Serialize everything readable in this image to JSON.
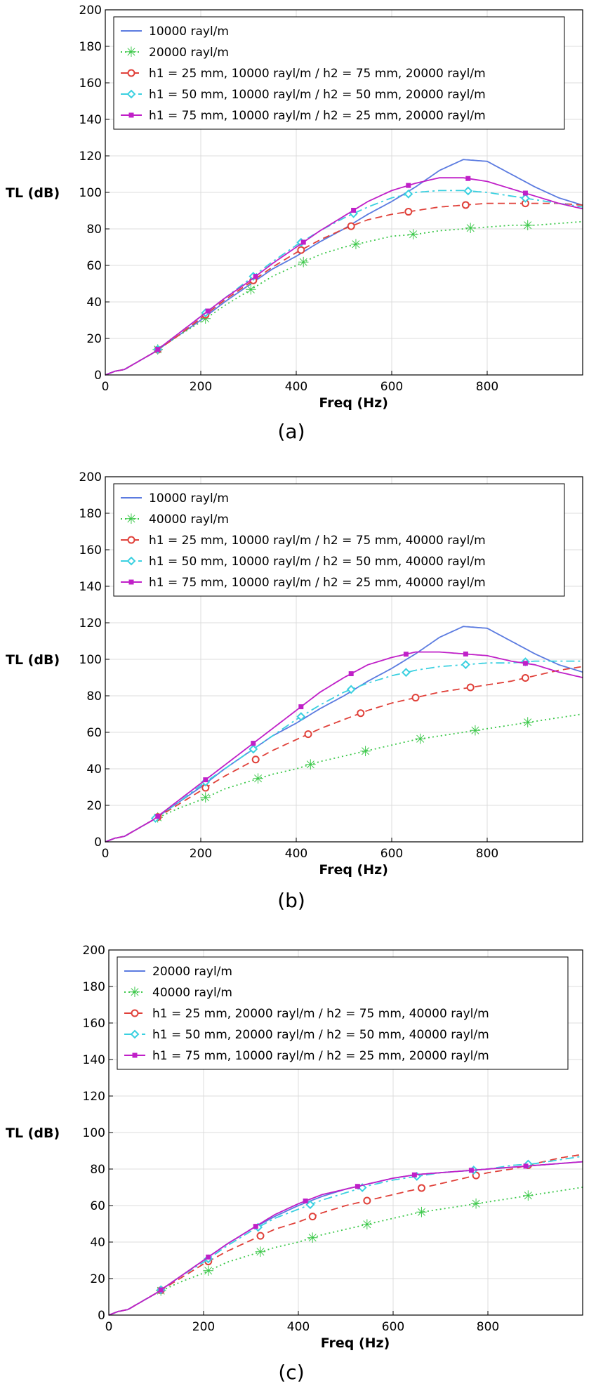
{
  "chart_data": [
    {
      "type": "line",
      "caption": "(a)",
      "xlabel": "Freq (Hz)",
      "ylabel": "TL (dB)",
      "xlim": [
        0,
        1000
      ],
      "ylim": [
        0,
        200
      ],
      "xticks": [
        0,
        200,
        400,
        600,
        800
      ],
      "yticks": [
        0,
        20,
        40,
        60,
        80,
        100,
        120,
        140,
        160,
        180,
        200
      ],
      "grid": true,
      "legend_position": "top-left",
      "series": [
        {
          "name": "10000 rayl/m",
          "color": "#5b7be0",
          "style": "solid",
          "marker": "none",
          "x": [
            0,
            20,
            40,
            60,
            80,
            100,
            150,
            200,
            250,
            300,
            350,
            400,
            450,
            500,
            550,
            600,
            650,
            700,
            750,
            800,
            850,
            900,
            950,
            1000
          ],
          "y": [
            0,
            2,
            3,
            6,
            9,
            12,
            21,
            30,
            40,
            49,
            58,
            65,
            73,
            80,
            88,
            95,
            103,
            112,
            118,
            117,
            110,
            103,
            97,
            93
          ]
        },
        {
          "name": "20000 rayl/m",
          "color": "#3cc84a",
          "style": "dotted",
          "marker": "star",
          "x": [
            0,
            20,
            40,
            60,
            80,
            100,
            150,
            200,
            250,
            300,
            350,
            400,
            450,
            500,
            550,
            600,
            650,
            700,
            750,
            800,
            850,
            900,
            950,
            1000
          ],
          "y": [
            0,
            2,
            3,
            6,
            9,
            12,
            21,
            29,
            38,
            46,
            54,
            60,
            66,
            70,
            73,
            76,
            77,
            79,
            80,
            81,
            82,
            82,
            83,
            84
          ],
          "marker_x": [
            110,
            210,
            305,
            415,
            525,
            645,
            765,
            885
          ]
        },
        {
          "name": "h1 = 25 mm, 10000 rayl/m / h2 = 75 mm, 20000 rayl/m",
          "color": "#e0413a",
          "style": "dashed",
          "marker": "circle",
          "x": [
            0,
            20,
            40,
            60,
            80,
            100,
            150,
            200,
            250,
            300,
            350,
            400,
            450,
            500,
            550,
            600,
            650,
            700,
            750,
            800,
            850,
            900,
            950,
            1000
          ],
          "y": [
            0,
            2,
            3,
            6,
            9,
            12,
            21,
            31,
            41,
            50,
            59,
            67,
            74,
            80,
            85,
            88,
            90,
            92,
            93,
            94,
            94,
            94,
            94,
            93
          ],
          "marker_x": [
            110,
            210,
            310,
            410,
            515,
            635,
            755,
            880
          ]
        },
        {
          "name": "h1 = 50 mm, 10000 rayl/m / h2 = 50 mm, 20000 rayl/m",
          "color": "#3ad0e0",
          "style": "dashdot",
          "marker": "diamond",
          "x": [
            0,
            20,
            40,
            60,
            80,
            100,
            150,
            200,
            250,
            300,
            350,
            400,
            450,
            500,
            550,
            600,
            650,
            700,
            750,
            800,
            850,
            900,
            950,
            1000
          ],
          "y": [
            0,
            2,
            3,
            6,
            9,
            12,
            22,
            32,
            42,
            52,
            62,
            71,
            79,
            86,
            92,
            97,
            100,
            101,
            101,
            100,
            98,
            96,
            94,
            92
          ],
          "marker_x": [
            110,
            210,
            310,
            410,
            520,
            635,
            760,
            880
          ]
        },
        {
          "name": "h1 = 75 mm, 10000 rayl/m / h2 = 25 mm, 20000 rayl/m",
          "color": "#c020c8",
          "style": "solid",
          "marker": "square",
          "x": [
            0,
            20,
            40,
            60,
            80,
            100,
            150,
            200,
            250,
            300,
            350,
            400,
            450,
            500,
            550,
            600,
            650,
            700,
            750,
            800,
            850,
            900,
            950,
            1000
          ],
          "y": [
            0,
            2,
            3,
            6,
            9,
            12,
            22,
            32,
            42,
            51,
            61,
            70,
            79,
            87,
            95,
            101,
            105,
            108,
            108,
            106,
            102,
            98,
            94,
            91
          ],
          "marker_x": [
            110,
            215,
            315,
            415,
            520,
            635,
            760,
            880
          ]
        }
      ]
    },
    {
      "type": "line",
      "caption": "(b)",
      "xlabel": "Freq (Hz)",
      "ylabel": "TL (dB)",
      "xlim": [
        0,
        1000
      ],
      "ylim": [
        0,
        200
      ],
      "xticks": [
        0,
        200,
        400,
        600,
        800
      ],
      "yticks": [
        0,
        20,
        40,
        60,
        80,
        100,
        120,
        140,
        160,
        180,
        200
      ],
      "grid": true,
      "legend_position": "top-left",
      "series": [
        {
          "name": "10000 rayl/m",
          "color": "#5b7be0",
          "style": "solid",
          "marker": "none",
          "x": [
            0,
            20,
            40,
            60,
            80,
            100,
            150,
            200,
            250,
            300,
            350,
            400,
            450,
            500,
            550,
            600,
            650,
            700,
            750,
            800,
            850,
            900,
            950,
            1000
          ],
          "y": [
            0,
            2,
            3,
            6,
            9,
            12,
            21,
            30,
            40,
            49,
            58,
            65,
            73,
            80,
            88,
            95,
            103,
            112,
            118,
            117,
            110,
            103,
            97,
            93
          ]
        },
        {
          "name": "40000 rayl/m",
          "color": "#3cc84a",
          "style": "dotted",
          "marker": "star",
          "x": [
            0,
            20,
            40,
            60,
            80,
            100,
            150,
            200,
            250,
            300,
            350,
            400,
            450,
            500,
            550,
            600,
            650,
            700,
            750,
            800,
            850,
            900,
            950,
            1000
          ],
          "y": [
            0,
            2,
            3,
            6,
            9,
            12,
            18,
            23,
            29,
            33,
            37,
            40,
            44,
            47,
            50,
            53,
            56,
            58,
            60,
            62,
            64,
            66,
            68,
            70
          ],
          "marker_x": [
            110,
            210,
            320,
            430,
            545,
            660,
            775,
            885
          ]
        },
        {
          "name": "h1 = 25 mm, 10000 rayl/m / h2 = 75 mm, 40000 rayl/m",
          "color": "#e0413a",
          "style": "dashed",
          "marker": "circle",
          "x": [
            0,
            20,
            40,
            60,
            80,
            100,
            150,
            200,
            250,
            300,
            350,
            400,
            450,
            500,
            550,
            600,
            650,
            700,
            750,
            800,
            850,
            900,
            950,
            1000
          ],
          "y": [
            0,
            2,
            3,
            6,
            9,
            12,
            20,
            28,
            36,
            43,
            50,
            56,
            62,
            67,
            72,
            76,
            79,
            82,
            84,
            86,
            88,
            91,
            94,
            96
          ],
          "marker_x": [
            110,
            210,
            315,
            425,
            535,
            650,
            765,
            880
          ]
        },
        {
          "name": "h1 = 50 mm, 10000 rayl/m / h2 = 50 mm, 40000 rayl/m",
          "color": "#3ad0e0",
          "style": "dashdot",
          "marker": "diamond",
          "x": [
            0,
            20,
            40,
            60,
            80,
            100,
            150,
            200,
            250,
            300,
            350,
            400,
            450,
            500,
            550,
            600,
            650,
            700,
            750,
            800,
            850,
            900,
            950,
            1000
          ],
          "y": [
            0,
            2,
            3,
            6,
            9,
            12,
            21,
            31,
            40,
            49,
            58,
            67,
            75,
            82,
            87,
            91,
            94,
            96,
            97,
            98,
            98,
            99,
            99,
            99
          ],
          "marker_x": [
            105,
            210,
            310,
            410,
            515,
            630,
            755,
            880
          ]
        },
        {
          "name": "h1 = 75 mm, 10000 rayl/m / h2 = 25 mm, 40000 rayl/m",
          "color": "#c020c8",
          "style": "solid",
          "marker": "square",
          "x": [
            0,
            20,
            40,
            60,
            80,
            100,
            150,
            200,
            250,
            300,
            350,
            400,
            450,
            500,
            550,
            600,
            650,
            700,
            750,
            800,
            850,
            900,
            950,
            1000
          ],
          "y": [
            0,
            2,
            3,
            6,
            9,
            12,
            22,
            32,
            42,
            52,
            62,
            72,
            82,
            90,
            97,
            101,
            104,
            104,
            103,
            102,
            99,
            97,
            93,
            90
          ],
          "marker_x": [
            110,
            210,
            310,
            410,
            515,
            630,
            755,
            880
          ]
        }
      ]
    },
    {
      "type": "line",
      "caption": "(c)",
      "xlabel": "Freq (Hz)",
      "ylabel": "TL (dB)",
      "xlim": [
        0,
        1000
      ],
      "ylim": [
        0,
        200
      ],
      "xticks": [
        0,
        200,
        400,
        600,
        800
      ],
      "yticks": [
        0,
        20,
        40,
        60,
        80,
        100,
        120,
        140,
        160,
        180,
        200
      ],
      "grid": true,
      "legend_position": "top-left",
      "series": [
        {
          "name": "20000 rayl/m",
          "color": "#5b7be0",
          "style": "solid",
          "marker": "none",
          "x": [
            0,
            20,
            40,
            60,
            80,
            100,
            150,
            200,
            250,
            300,
            350,
            400,
            450,
            500,
            550,
            600,
            650,
            700,
            750,
            800,
            850,
            900,
            950,
            1000
          ],
          "y": [
            0,
            2,
            3,
            6,
            9,
            12,
            21,
            30,
            39,
            47,
            54,
            60,
            65,
            69,
            72,
            75,
            77,
            78,
            79,
            80,
            81,
            82,
            83,
            84
          ]
        },
        {
          "name": "40000 rayl/m",
          "color": "#3cc84a",
          "style": "dotted",
          "marker": "star",
          "x": [
            0,
            20,
            40,
            60,
            80,
            100,
            150,
            200,
            250,
            300,
            350,
            400,
            450,
            500,
            550,
            600,
            650,
            700,
            750,
            800,
            850,
            900,
            950,
            1000
          ],
          "y": [
            0,
            2,
            3,
            6,
            9,
            12,
            18,
            23,
            29,
            33,
            37,
            40,
            44,
            47,
            50,
            53,
            56,
            58,
            60,
            62,
            64,
            66,
            68,
            70
          ],
          "marker_x": [
            110,
            210,
            320,
            430,
            545,
            660,
            775,
            885
          ]
        },
        {
          "name": "h1 = 25 mm, 20000 rayl/m / h2 = 75 mm, 40000 rayl/m",
          "color": "#e0413a",
          "style": "dashed",
          "marker": "circle",
          "x": [
            0,
            20,
            40,
            60,
            80,
            100,
            150,
            200,
            250,
            300,
            350,
            400,
            450,
            500,
            550,
            600,
            650,
            700,
            750,
            800,
            850,
            900,
            950,
            1000
          ],
          "y": [
            0,
            2,
            3,
            6,
            9,
            12,
            20,
            28,
            35,
            41,
            47,
            51,
            56,
            60,
            63,
            66,
            69,
            72,
            75,
            78,
            80,
            83,
            86,
            88
          ],
          "marker_x": [
            110,
            210,
            320,
            430,
            545,
            660,
            775,
            885
          ]
        },
        {
          "name": "h1 = 50 mm, 20000 rayl/m / h2 = 50 mm, 40000 rayl/m",
          "color": "#3ad0e0",
          "style": "dashdot",
          "marker": "diamond",
          "x": [
            0,
            20,
            40,
            60,
            80,
            100,
            150,
            200,
            250,
            300,
            350,
            400,
            450,
            500,
            550,
            600,
            650,
            700,
            750,
            800,
            850,
            900,
            950,
            1000
          ],
          "y": [
            0,
            2,
            3,
            6,
            9,
            12,
            21,
            29,
            38,
            46,
            53,
            58,
            63,
            67,
            71,
            74,
            76,
            78,
            79,
            80,
            82,
            83,
            85,
            87
          ],
          "marker_x": [
            110,
            210,
            315,
            425,
            535,
            650,
            770,
            885
          ]
        },
        {
          "name": "h1 = 75 mm, 10000 rayl/m / h2 = 25 mm, 20000 rayl/m",
          "color": "#c020c8",
          "style": "solid",
          "marker": "square",
          "x": [
            0,
            20,
            40,
            60,
            80,
            100,
            150,
            200,
            250,
            300,
            350,
            400,
            450,
            500,
            550,
            600,
            650,
            700,
            750,
            800,
            850,
            900,
            950,
            1000
          ],
          "y": [
            0,
            2,
            3,
            6,
            9,
            12,
            21,
            30,
            39,
            47,
            55,
            61,
            66,
            69,
            72,
            75,
            77,
            78,
            79,
            80,
            81,
            82,
            83,
            84
          ],
          "marker_x": [
            110,
            210,
            310,
            415,
            525,
            645,
            765,
            880
          ]
        }
      ]
    }
  ]
}
